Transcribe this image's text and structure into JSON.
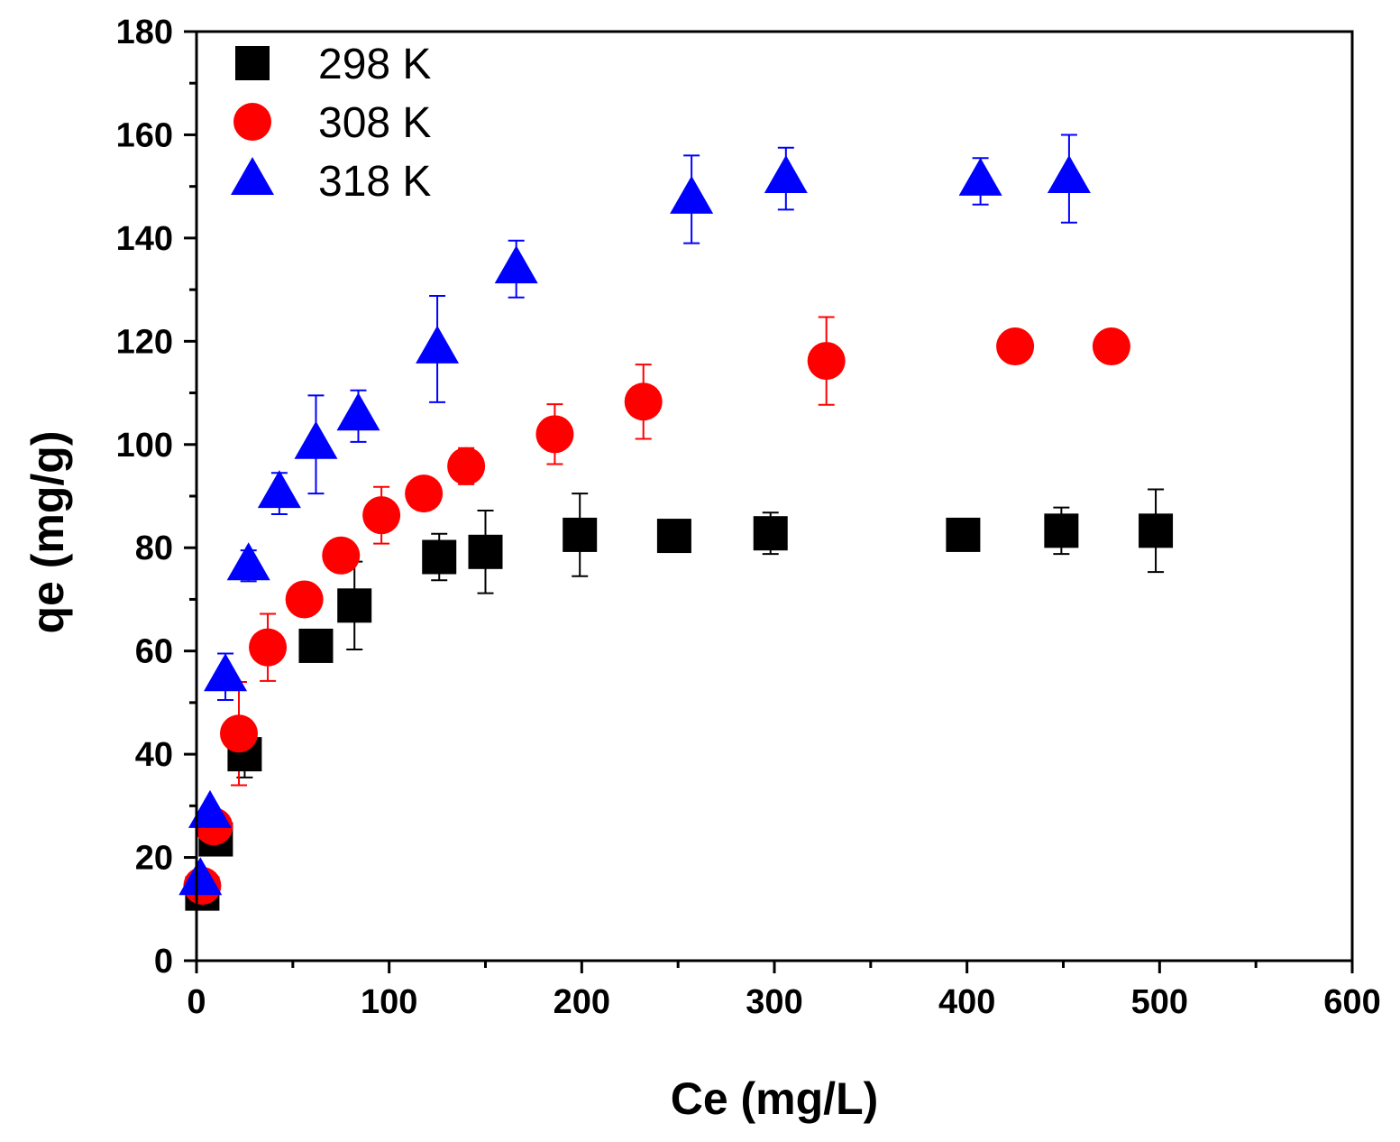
{
  "chart_data": {
    "type": "scatter",
    "title": "",
    "xlabel": "Ce (mg/L)",
    "ylabel": "qe (mg/g)",
    "xlim": [
      0,
      600
    ],
    "ylim": [
      0,
      180
    ],
    "xticks": [
      0,
      100,
      200,
      300,
      400,
      500,
      600
    ],
    "yticks": [
      0,
      20,
      40,
      60,
      80,
      100,
      120,
      140,
      160,
      180
    ],
    "xtick_labels": [
      "0",
      "100",
      "200",
      "300",
      "400",
      "500",
      "600"
    ],
    "ytick_labels": [
      "0",
      "20",
      "40",
      "60",
      "80",
      "100",
      "120",
      "140",
      "160",
      "180"
    ],
    "grid": false,
    "legend_position": "top-left",
    "error_bars": "upper/lower whiskers on most points",
    "series": [
      {
        "name": "298 K",
        "marker": "square",
        "color": "#000000",
        "points": [
          {
            "x": 3,
            "y": 13,
            "err": 0
          },
          {
            "x": 10,
            "y": 23.5,
            "err": 2
          },
          {
            "x": 25,
            "y": 40,
            "err": 4.5
          },
          {
            "x": 62,
            "y": 61,
            "err": 0
          },
          {
            "x": 82,
            "y": 68.8,
            "err": 8.5
          },
          {
            "x": 126,
            "y": 78.2,
            "err": 4.5
          },
          {
            "x": 150,
            "y": 79.2,
            "err": 8
          },
          {
            "x": 199,
            "y": 82.5,
            "err": 8
          },
          {
            "x": 248,
            "y": 82.3,
            "err": 0
          },
          {
            "x": 298,
            "y": 82.8,
            "err": 4
          },
          {
            "x": 398,
            "y": 82.5,
            "err": 0
          },
          {
            "x": 449,
            "y": 83.3,
            "err": 4.5
          },
          {
            "x": 498,
            "y": 83.3,
            "err": 8
          }
        ]
      },
      {
        "name": "308 K",
        "marker": "circle",
        "color": "#ff0000",
        "points": [
          {
            "x": 3,
            "y": 14.5,
            "err": 0
          },
          {
            "x": 9,
            "y": 26,
            "err": 2.5
          },
          {
            "x": 22,
            "y": 44,
            "err": 10
          },
          {
            "x": 37,
            "y": 60.7,
            "err": 6.5
          },
          {
            "x": 56,
            "y": 70,
            "err": 0
          },
          {
            "x": 75,
            "y": 78.5,
            "err": 0
          },
          {
            "x": 96,
            "y": 86.3,
            "err": 5.5
          },
          {
            "x": 118,
            "y": 90.5,
            "err": 0
          },
          {
            "x": 140,
            "y": 95.8,
            "err": 3.5
          },
          {
            "x": 186,
            "y": 102,
            "err": 5.8
          },
          {
            "x": 232,
            "y": 108.3,
            "err": 7.2
          },
          {
            "x": 327,
            "y": 116.2,
            "err": 8.5
          },
          {
            "x": 425,
            "y": 119,
            "err": 0
          },
          {
            "x": 475,
            "y": 119,
            "err": 0
          }
        ]
      },
      {
        "name": "318 K",
        "marker": "triangle",
        "color": "#0000ff",
        "points": [
          {
            "x": 2,
            "y": 15.5,
            "err": 0
          },
          {
            "x": 7,
            "y": 28.5,
            "err": 0
          },
          {
            "x": 15,
            "y": 55,
            "err": 4.5
          },
          {
            "x": 27,
            "y": 76.5,
            "err": 3
          },
          {
            "x": 43,
            "y": 90.5,
            "err": 4
          },
          {
            "x": 62,
            "y": 100,
            "err": 9.5
          },
          {
            "x": 84,
            "y": 105.5,
            "err": 5
          },
          {
            "x": 125,
            "y": 118.5,
            "err": 10.3
          },
          {
            "x": 166,
            "y": 134,
            "err": 5.5
          },
          {
            "x": 257,
            "y": 147.5,
            "err": 8.5
          },
          {
            "x": 306,
            "y": 151.5,
            "err": 6
          },
          {
            "x": 407,
            "y": 151,
            "err": 4.5
          },
          {
            "x": 453,
            "y": 151.5,
            "err": 8.5
          }
        ]
      }
    ]
  }
}
